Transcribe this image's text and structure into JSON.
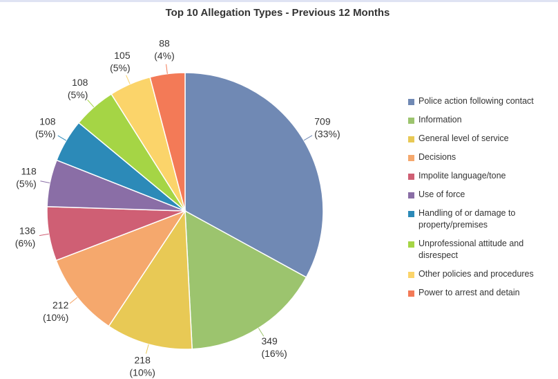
{
  "chart_data": {
    "type": "pie",
    "title": "Top 10 Allegation Types - Previous 12 Months",
    "categories": [
      "Police action following contact",
      "Information",
      "General level of service",
      "Decisions",
      "Impolite language/tone",
      "Use of force",
      "Handling of or damage to property/premises",
      "Unprofessional attitude and disrespect",
      "Other policies and procedures",
      "Power to arrest and detain"
    ],
    "values": [
      709,
      349,
      218,
      212,
      136,
      118,
      108,
      108,
      105,
      88
    ],
    "percent_labels": [
      "(33%)",
      "(16%)",
      "(10%)",
      "(10%)",
      "(6%)",
      "(5%)",
      "(5%)",
      "(5%)",
      "(5%)",
      "(4%)"
    ],
    "colors": [
      "#7089b4",
      "#9cc46e",
      "#e8c955",
      "#f5a86d",
      "#cf5f74",
      "#8a6ea6",
      "#2c8ab8",
      "#a5d545",
      "#fbd46a",
      "#f37a57"
    ],
    "legend": "right"
  }
}
